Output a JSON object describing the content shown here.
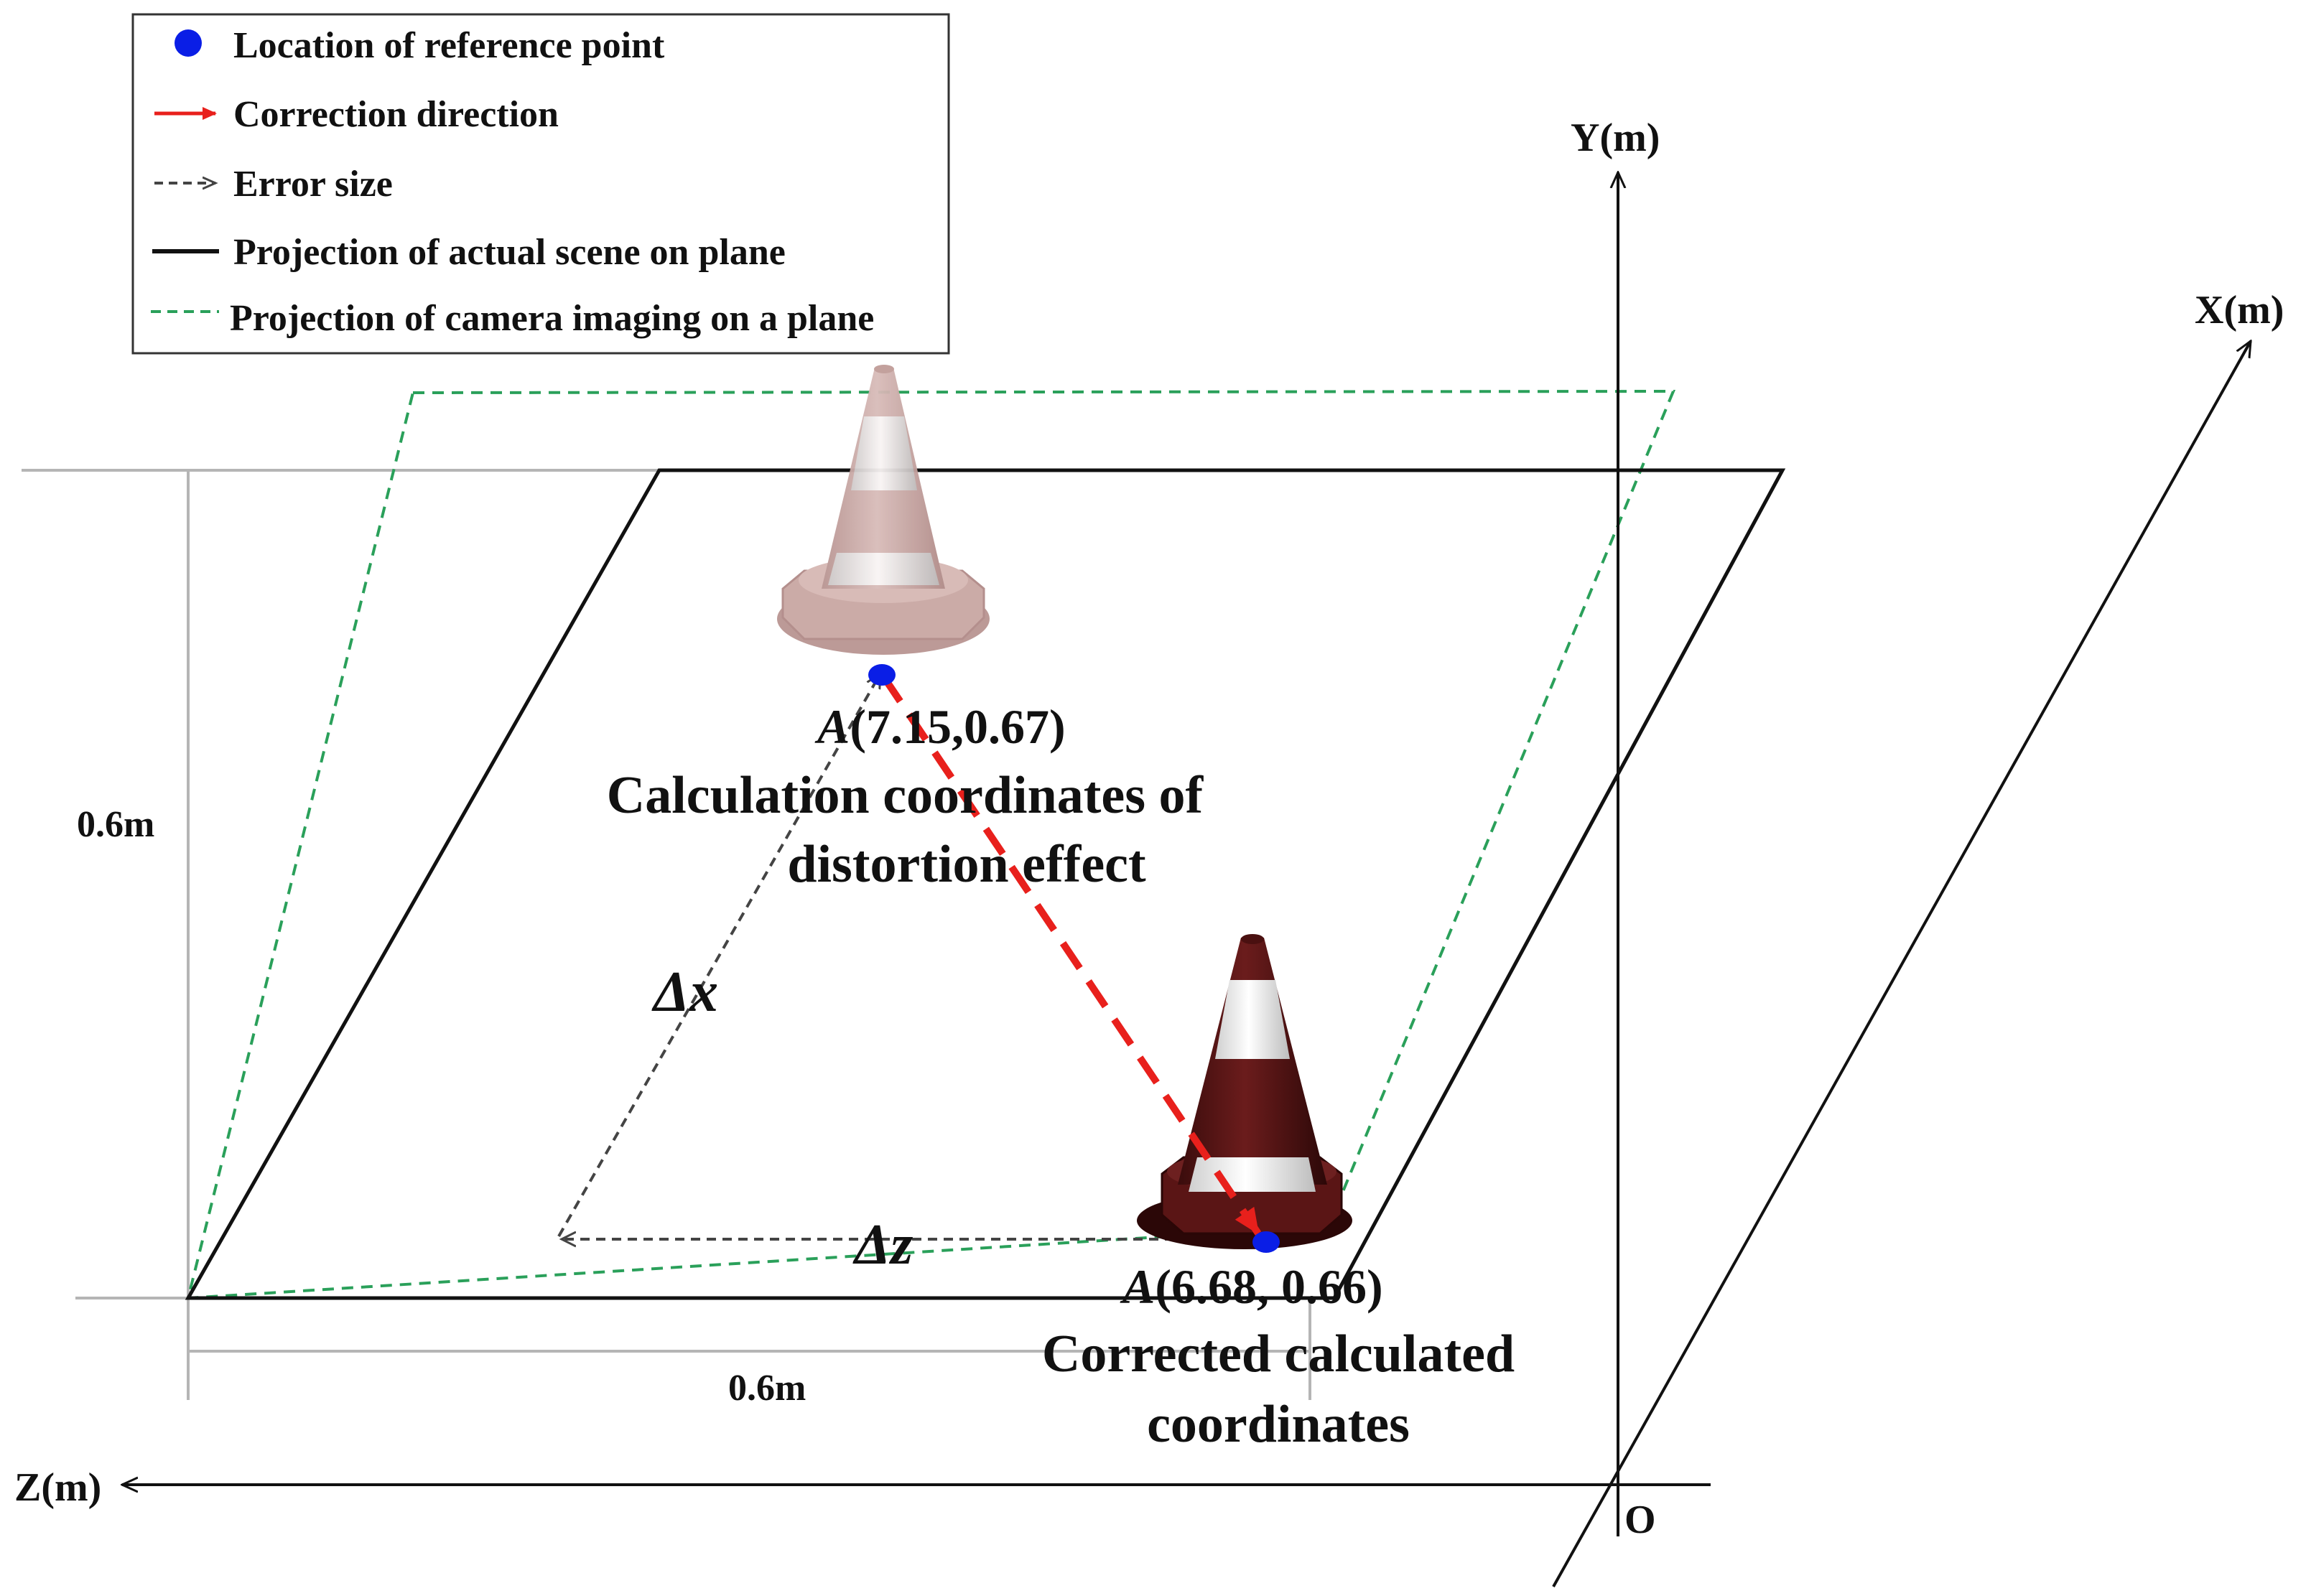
{
  "legend": {
    "items": [
      {
        "label": "Location of reference point",
        "icon": "blue-dot-icon"
      },
      {
        "label": "Correction direction",
        "icon": "red-arrow-icon"
      },
      {
        "label": "Error size",
        "icon": "gray-dashed-arrow-icon"
      },
      {
        "label": "Projection of actual scene on plane",
        "icon": "black-line-icon"
      },
      {
        "label": "Projection of camera imaging on a plane",
        "icon": "green-dashed-line-icon"
      }
    ]
  },
  "axes": {
    "y_label": "Y(m)",
    "x_label": "X(m)",
    "z_label": "Z(m)",
    "origin_label": "O"
  },
  "dimensions": {
    "vertical": "0.6m",
    "horizontal": "0.6m"
  },
  "deltas": {
    "dx": "Δx",
    "dz": "Δz"
  },
  "points": {
    "distorted": {
      "letter": "A",
      "coords": "(7.15,0.67)",
      "caption_line1": "Calculation coordinates of",
      "caption_line2": "distortion effect"
    },
    "corrected": {
      "letter": "A",
      "coords": "(6.68, 0.66)",
      "caption_line1": "Corrected calculated",
      "caption_line2": "coordinates"
    }
  },
  "colors": {
    "reference_point": "#0a1ee6",
    "correction_arrow": "#e8201c",
    "error_arrow": "#444444",
    "actual_projection": "#111111",
    "camera_projection": "#2aa05a",
    "cone_dark": "#5a1515",
    "cone_faded": "#c9a7a3"
  }
}
